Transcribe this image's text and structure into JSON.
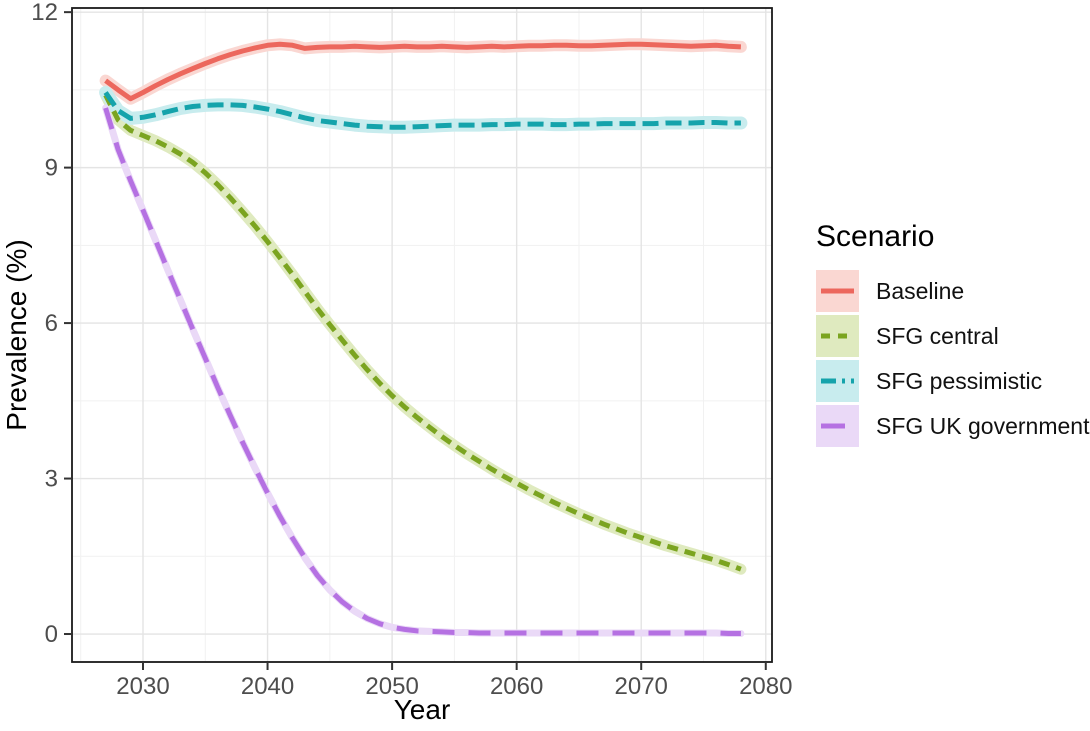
{
  "chart_data": {
    "type": "line",
    "title": "",
    "xlabel": "Year",
    "ylabel": "Prevalence (%)",
    "x_domain": [
      2024.3,
      2080.5
    ],
    "y_domain": [
      -0.54,
      12.08
    ],
    "x_ticks": [
      2030,
      2040,
      2050,
      2060,
      2070,
      2080
    ],
    "x_minor_ticks": [
      2025,
      2035,
      2045,
      2055,
      2065,
      2075
    ],
    "y_ticks": [
      0,
      3,
      6,
      9,
      12
    ],
    "y_minor_ticks": [
      1.5,
      4.5,
      7.5,
      10.5
    ],
    "grid": true,
    "legend": {
      "title": "Scenario",
      "position": "right"
    },
    "years": [
      2027,
      2028,
      2029,
      2030,
      2031,
      2032,
      2033,
      2034,
      2035,
      2036,
      2037,
      2038,
      2039,
      2040,
      2041,
      2042,
      2043,
      2044,
      2045,
      2046,
      2047,
      2048,
      2049,
      2050,
      2051,
      2052,
      2053,
      2054,
      2055,
      2056,
      2057,
      2058,
      2059,
      2060,
      2061,
      2062,
      2063,
      2064,
      2065,
      2066,
      2067,
      2068,
      2069,
      2070,
      2071,
      2072,
      2073,
      2074,
      2075,
      2076,
      2077,
      2078
    ],
    "series": [
      {
        "name": "Baseline",
        "color": "#ec675d",
        "ribbon_color": "#fad7d2",
        "dash": "",
        "line_width": 5,
        "ribbon_width": 12,
        "values": [
          10.68,
          10.5,
          10.33,
          10.45,
          10.58,
          10.7,
          10.81,
          10.91,
          11.01,
          11.1,
          11.18,
          11.25,
          11.31,
          11.36,
          11.38,
          11.36,
          11.3,
          11.32,
          11.33,
          11.33,
          11.34,
          11.33,
          11.32,
          11.33,
          11.34,
          11.33,
          11.33,
          11.34,
          11.33,
          11.32,
          11.33,
          11.34,
          11.33,
          11.34,
          11.35,
          11.35,
          11.36,
          11.36,
          11.35,
          11.35,
          11.36,
          11.37,
          11.38,
          11.38,
          11.37,
          11.36,
          11.35,
          11.34,
          11.35,
          11.36,
          11.34,
          11.33
        ]
      },
      {
        "name": "SFG central",
        "color": "#7ba420",
        "ribbon_color": "#dfeabf",
        "dash": "11 7",
        "line_width": 5,
        "ribbon_width": 11,
        "values": [
          10.4,
          9.92,
          9.72,
          9.62,
          9.52,
          9.4,
          9.26,
          9.1,
          8.9,
          8.67,
          8.42,
          8.15,
          7.87,
          7.57,
          7.26,
          6.94,
          6.61,
          6.28,
          5.97,
          5.67,
          5.38,
          5.1,
          4.84,
          4.6,
          4.38,
          4.18,
          3.99,
          3.81,
          3.64,
          3.48,
          3.33,
          3.18,
          3.04,
          2.91,
          2.78,
          2.66,
          2.54,
          2.43,
          2.32,
          2.22,
          2.12,
          2.03,
          1.94,
          1.86,
          1.78,
          1.7,
          1.63,
          1.56,
          1.49,
          1.42,
          1.34,
          1.25
        ]
      },
      {
        "name": "SFG pessimistic",
        "color": "#15a3ab",
        "ribbon_color": "#c8ecee",
        "dash": "16 7",
        "line_width": 5,
        "ribbon_width": 13,
        "values": [
          10.45,
          10.1,
          9.95,
          9.97,
          10.02,
          10.08,
          10.14,
          10.18,
          10.2,
          10.21,
          10.21,
          10.2,
          10.17,
          10.13,
          10.08,
          10.02,
          9.96,
          9.91,
          9.88,
          9.85,
          9.82,
          9.8,
          9.79,
          9.78,
          9.78,
          9.79,
          9.8,
          9.81,
          9.82,
          9.82,
          9.82,
          9.83,
          9.83,
          9.84,
          9.84,
          9.84,
          9.83,
          9.83,
          9.84,
          9.84,
          9.85,
          9.85,
          9.85,
          9.85,
          9.85,
          9.86,
          9.86,
          9.86,
          9.87,
          9.87,
          9.86,
          9.86
        ]
      },
      {
        "name": "SFG UK government",
        "color": "#b571e2",
        "ribbon_color": "#ead9f7",
        "dash": "22 14",
        "line_width": 5,
        "ribbon_width": 7,
        "values": [
          10.15,
          9.35,
          8.75,
          8.18,
          7.6,
          7.02,
          6.45,
          5.88,
          5.32,
          4.76,
          4.22,
          3.7,
          3.2,
          2.72,
          2.27,
          1.85,
          1.47,
          1.13,
          0.85,
          0.62,
          0.44,
          0.3,
          0.2,
          0.13,
          0.09,
          0.06,
          0.05,
          0.04,
          0.03,
          0.03,
          0.02,
          0.02,
          0.02,
          0.02,
          0.02,
          0.02,
          0.02,
          0.02,
          0.02,
          0.02,
          0.02,
          0.02,
          0.02,
          0.02,
          0.02,
          0.02,
          0.02,
          0.02,
          0.02,
          0.02,
          0.01,
          0.01
        ]
      }
    ],
    "style": {
      "panel_background": "#ffffff",
      "major_grid_color": "#e4e4e4",
      "minor_grid_color": "#f1f1f1",
      "panel_border_color": "#1a1a1a",
      "tick_color": "#333333",
      "tick_label_color": "#4d4d4d"
    }
  }
}
